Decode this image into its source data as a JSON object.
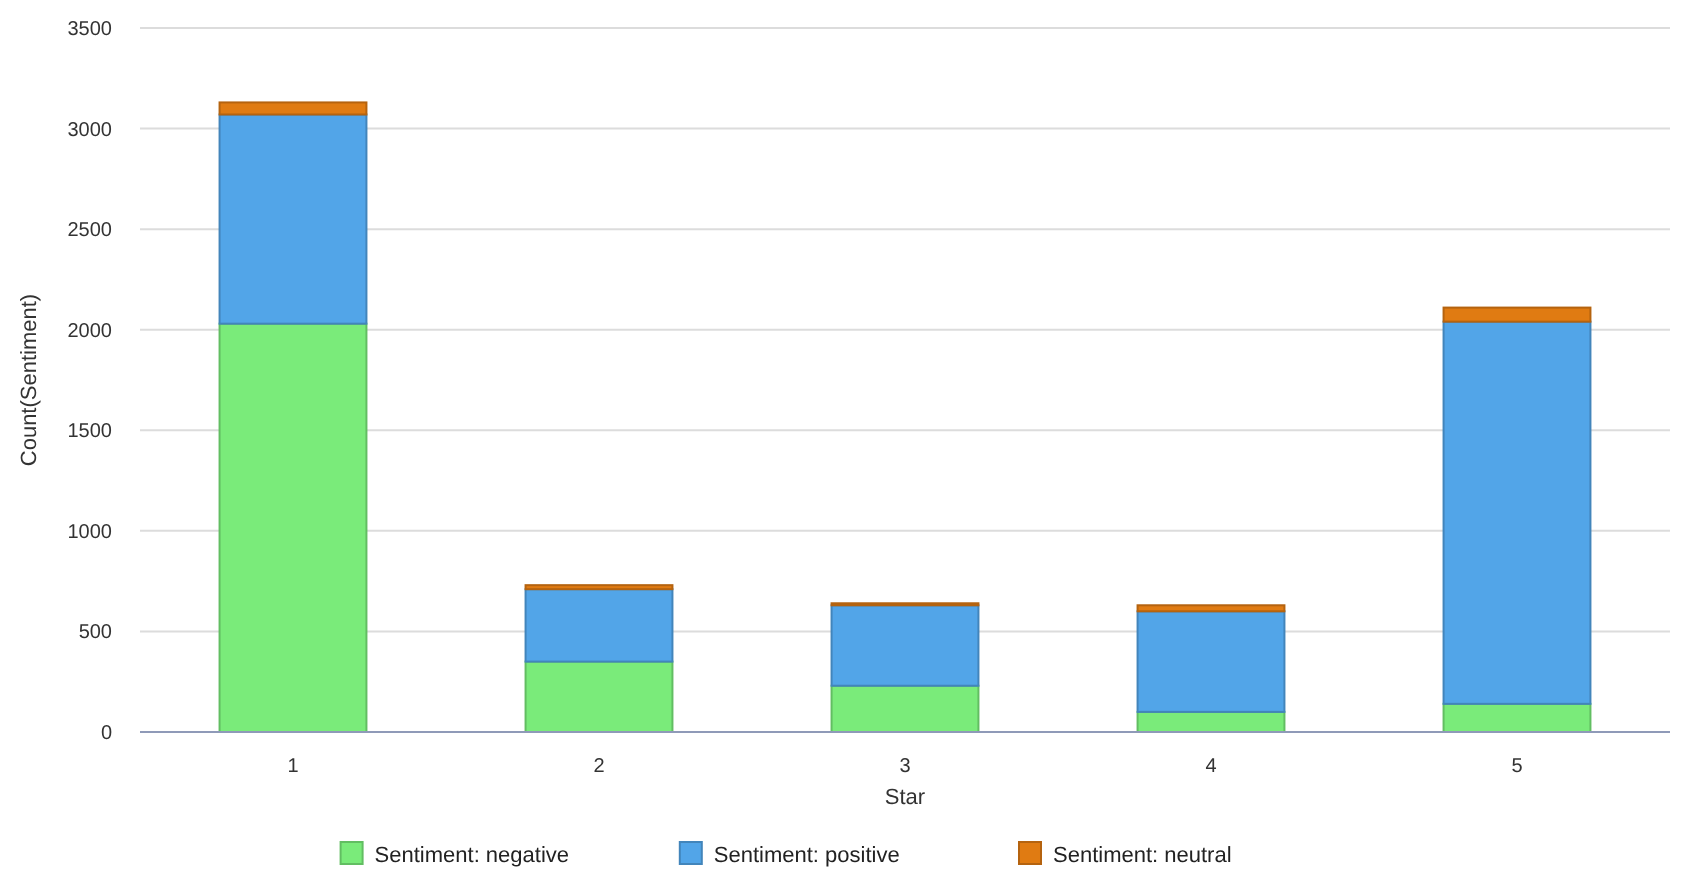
{
  "chart_data": {
    "type": "bar",
    "stacked": true,
    "xlabel": "Star",
    "ylabel": "Count(Sentiment)",
    "categories": [
      "1",
      "2",
      "3",
      "4",
      "5"
    ],
    "series": [
      {
        "name": "Sentiment: negative",
        "color": "#7aeb7a",
        "values": [
          2030,
          350,
          230,
          100,
          140
        ]
      },
      {
        "name": "Sentiment: positive",
        "color": "#52a5e8",
        "values": [
          1040,
          360,
          400,
          500,
          1900
        ]
      },
      {
        "name": "Sentiment: neutral",
        "color": "#e07b12",
        "values": [
          60,
          20,
          10,
          30,
          70
        ]
      }
    ],
    "ylim": [
      0,
      3500
    ],
    "yticks": [
      0,
      500,
      1000,
      1500,
      2000,
      2500,
      3000,
      3500
    ],
    "grid": "y",
    "legend": "bottom"
  }
}
